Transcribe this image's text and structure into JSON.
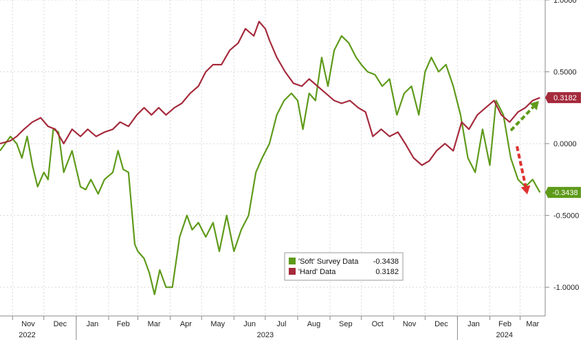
{
  "chart_data": {
    "type": "line",
    "title": "",
    "xlabel": "",
    "ylabel": "",
    "x_range": [
      "2022-10-20",
      "2024-03-25"
    ],
    "ylim": [
      -1.2,
      1.0
    ],
    "y_ticks": [
      {
        "value": 1.0,
        "label": "1.0000"
      },
      {
        "value": 0.5,
        "label": "0.5000"
      },
      {
        "value": 0.0,
        "label": "0.0000"
      },
      {
        "value": -0.5,
        "label": "-0.5000"
      },
      {
        "value": -1.0,
        "label": "-1.0000"
      }
    ],
    "x_month_labels": [
      {
        "date": "2022-11-01",
        "label": "Nov"
      },
      {
        "date": "2022-12-01",
        "label": "Dec"
      },
      {
        "date": "2023-01-01",
        "label": "Jan"
      },
      {
        "date": "2023-02-01",
        "label": "Feb"
      },
      {
        "date": "2023-03-01",
        "label": "Mar"
      },
      {
        "date": "2023-04-01",
        "label": "Apr"
      },
      {
        "date": "2023-05-01",
        "label": "May"
      },
      {
        "date": "2023-06-01",
        "label": "Jun"
      },
      {
        "date": "2023-07-01",
        "label": "Jul"
      },
      {
        "date": "2023-08-01",
        "label": "Aug"
      },
      {
        "date": "2023-09-01",
        "label": "Sep"
      },
      {
        "date": "2023-10-01",
        "label": "Oct"
      },
      {
        "date": "2023-11-01",
        "label": "Nov"
      },
      {
        "date": "2023-12-01",
        "label": "Dec"
      },
      {
        "date": "2024-01-01",
        "label": "Jan"
      },
      {
        "date": "2024-02-01",
        "label": "Feb"
      },
      {
        "date": "2024-03-01",
        "label": "Mar"
      }
    ],
    "x_year_labels": [
      {
        "date": "2022-11-15",
        "label": "2022"
      },
      {
        "date": "2023-07-01",
        "label": "2023"
      },
      {
        "date": "2024-02-15",
        "label": "2024"
      }
    ],
    "grid": true,
    "legend_position": "bottom-center",
    "series": [
      {
        "name": "'Soft' Survey Data",
        "color": "#5e9a1a",
        "last_value": "-0.3438",
        "x": [
          "2022-10-20",
          "2022-10-30",
          "2022-11-05",
          "2022-11-10",
          "2022-11-15",
          "2022-11-20",
          "2022-11-25",
          "2022-12-01",
          "2022-12-05",
          "2022-12-10",
          "2022-12-15",
          "2022-12-20",
          "2022-12-28",
          "2023-01-05",
          "2023-01-10",
          "2023-01-15",
          "2023-01-22",
          "2023-01-28",
          "2023-02-05",
          "2023-02-10",
          "2023-02-15",
          "2023-02-20",
          "2023-02-26",
          "2023-03-01",
          "2023-03-07",
          "2023-03-12",
          "2023-03-17",
          "2023-03-22",
          "2023-03-28",
          "2023-04-03",
          "2023-04-10",
          "2023-04-17",
          "2023-04-22",
          "2023-04-28",
          "2023-05-05",
          "2023-05-12",
          "2023-05-18",
          "2023-05-25",
          "2023-06-01",
          "2023-06-08",
          "2023-06-15",
          "2023-06-22",
          "2023-06-28",
          "2023-07-05",
          "2023-07-12",
          "2023-07-19",
          "2023-07-26",
          "2023-08-01",
          "2023-08-06",
          "2023-08-12",
          "2023-08-18",
          "2023-08-24",
          "2023-08-30",
          "2023-09-05",
          "2023-09-12",
          "2023-09-19",
          "2023-09-26",
          "2023-10-01",
          "2023-10-07",
          "2023-10-14",
          "2023-10-21",
          "2023-10-28",
          "2023-11-04",
          "2023-11-11",
          "2023-11-18",
          "2023-11-25",
          "2023-12-01",
          "2023-12-07",
          "2023-12-14",
          "2023-12-21",
          "2023-12-28",
          "2024-01-04",
          "2024-01-11",
          "2024-01-18",
          "2024-01-25",
          "2024-02-01",
          "2024-02-07",
          "2024-02-14",
          "2024-02-21",
          "2024-02-28",
          "2024-03-06",
          "2024-03-13",
          "2024-03-20"
        ],
        "y": [
          -0.05,
          0.05,
          0.0,
          -0.1,
          0.05,
          -0.15,
          -0.3,
          -0.2,
          -0.25,
          0.1,
          0.08,
          -0.2,
          -0.05,
          -0.3,
          -0.32,
          -0.25,
          -0.35,
          -0.25,
          -0.2,
          -0.05,
          -0.18,
          -0.2,
          -0.7,
          -0.75,
          -0.8,
          -0.9,
          -1.05,
          -0.88,
          -1.0,
          -1.0,
          -0.65,
          -0.5,
          -0.6,
          -0.55,
          -0.65,
          -0.55,
          -0.75,
          -0.5,
          -0.75,
          -0.6,
          -0.5,
          -0.2,
          -0.1,
          0.0,
          0.2,
          0.3,
          0.35,
          0.3,
          0.1,
          0.35,
          0.3,
          0.6,
          0.4,
          0.65,
          0.75,
          0.7,
          0.6,
          0.55,
          0.5,
          0.48,
          0.4,
          0.45,
          0.2,
          0.35,
          0.4,
          0.2,
          0.5,
          0.6,
          0.5,
          0.55,
          0.4,
          0.2,
          -0.1,
          -0.2,
          0.1,
          -0.15,
          0.3,
          0.2,
          -0.1,
          -0.25,
          -0.3,
          -0.25,
          -0.34
        ]
      },
      {
        "name": "'Hard' Data",
        "color": "#a52a3c",
        "last_value": "0.3182",
        "x": [
          "2022-10-20",
          "2022-10-30",
          "2022-11-05",
          "2022-11-12",
          "2022-11-20",
          "2022-11-28",
          "2022-12-05",
          "2022-12-12",
          "2022-12-20",
          "2022-12-28",
          "2023-01-05",
          "2023-01-12",
          "2023-01-20",
          "2023-01-28",
          "2023-02-05",
          "2023-02-12",
          "2023-02-20",
          "2023-02-28",
          "2023-03-07",
          "2023-03-14",
          "2023-03-21",
          "2023-03-28",
          "2023-04-05",
          "2023-04-12",
          "2023-04-20",
          "2023-04-28",
          "2023-05-05",
          "2023-05-12",
          "2023-05-20",
          "2023-05-28",
          "2023-06-05",
          "2023-06-12",
          "2023-06-20",
          "2023-06-25",
          "2023-07-01",
          "2023-07-05",
          "2023-07-12",
          "2023-07-20",
          "2023-07-28",
          "2023-08-05",
          "2023-08-12",
          "2023-08-20",
          "2023-08-28",
          "2023-09-05",
          "2023-09-12",
          "2023-09-20",
          "2023-09-28",
          "2023-10-05",
          "2023-10-12",
          "2023-10-20",
          "2023-10-28",
          "2023-11-05",
          "2023-11-12",
          "2023-11-20",
          "2023-11-28",
          "2023-12-05",
          "2023-12-12",
          "2023-12-20",
          "2023-12-28",
          "2024-01-05",
          "2024-01-12",
          "2024-01-20",
          "2024-01-28",
          "2024-02-05",
          "2024-02-12",
          "2024-02-20",
          "2024-02-28",
          "2024-03-06",
          "2024-03-13",
          "2024-03-20"
        ],
        "y": [
          0.0,
          0.02,
          0.05,
          0.1,
          0.15,
          0.18,
          0.12,
          0.1,
          0.0,
          0.1,
          0.05,
          0.1,
          0.05,
          0.08,
          0.1,
          0.15,
          0.12,
          0.2,
          0.25,
          0.2,
          0.25,
          0.2,
          0.25,
          0.28,
          0.35,
          0.4,
          0.5,
          0.55,
          0.55,
          0.65,
          0.7,
          0.8,
          0.75,
          0.85,
          0.8,
          0.72,
          0.6,
          0.5,
          0.42,
          0.4,
          0.45,
          0.4,
          0.35,
          0.3,
          0.28,
          0.3,
          0.25,
          0.22,
          0.05,
          0.1,
          0.05,
          0.08,
          0.0,
          -0.1,
          -0.15,
          -0.12,
          -0.05,
          0.0,
          -0.05,
          0.15,
          0.1,
          0.2,
          0.25,
          0.3,
          0.2,
          0.15,
          0.22,
          0.25,
          0.3,
          0.32
        ]
      }
    ]
  }
}
